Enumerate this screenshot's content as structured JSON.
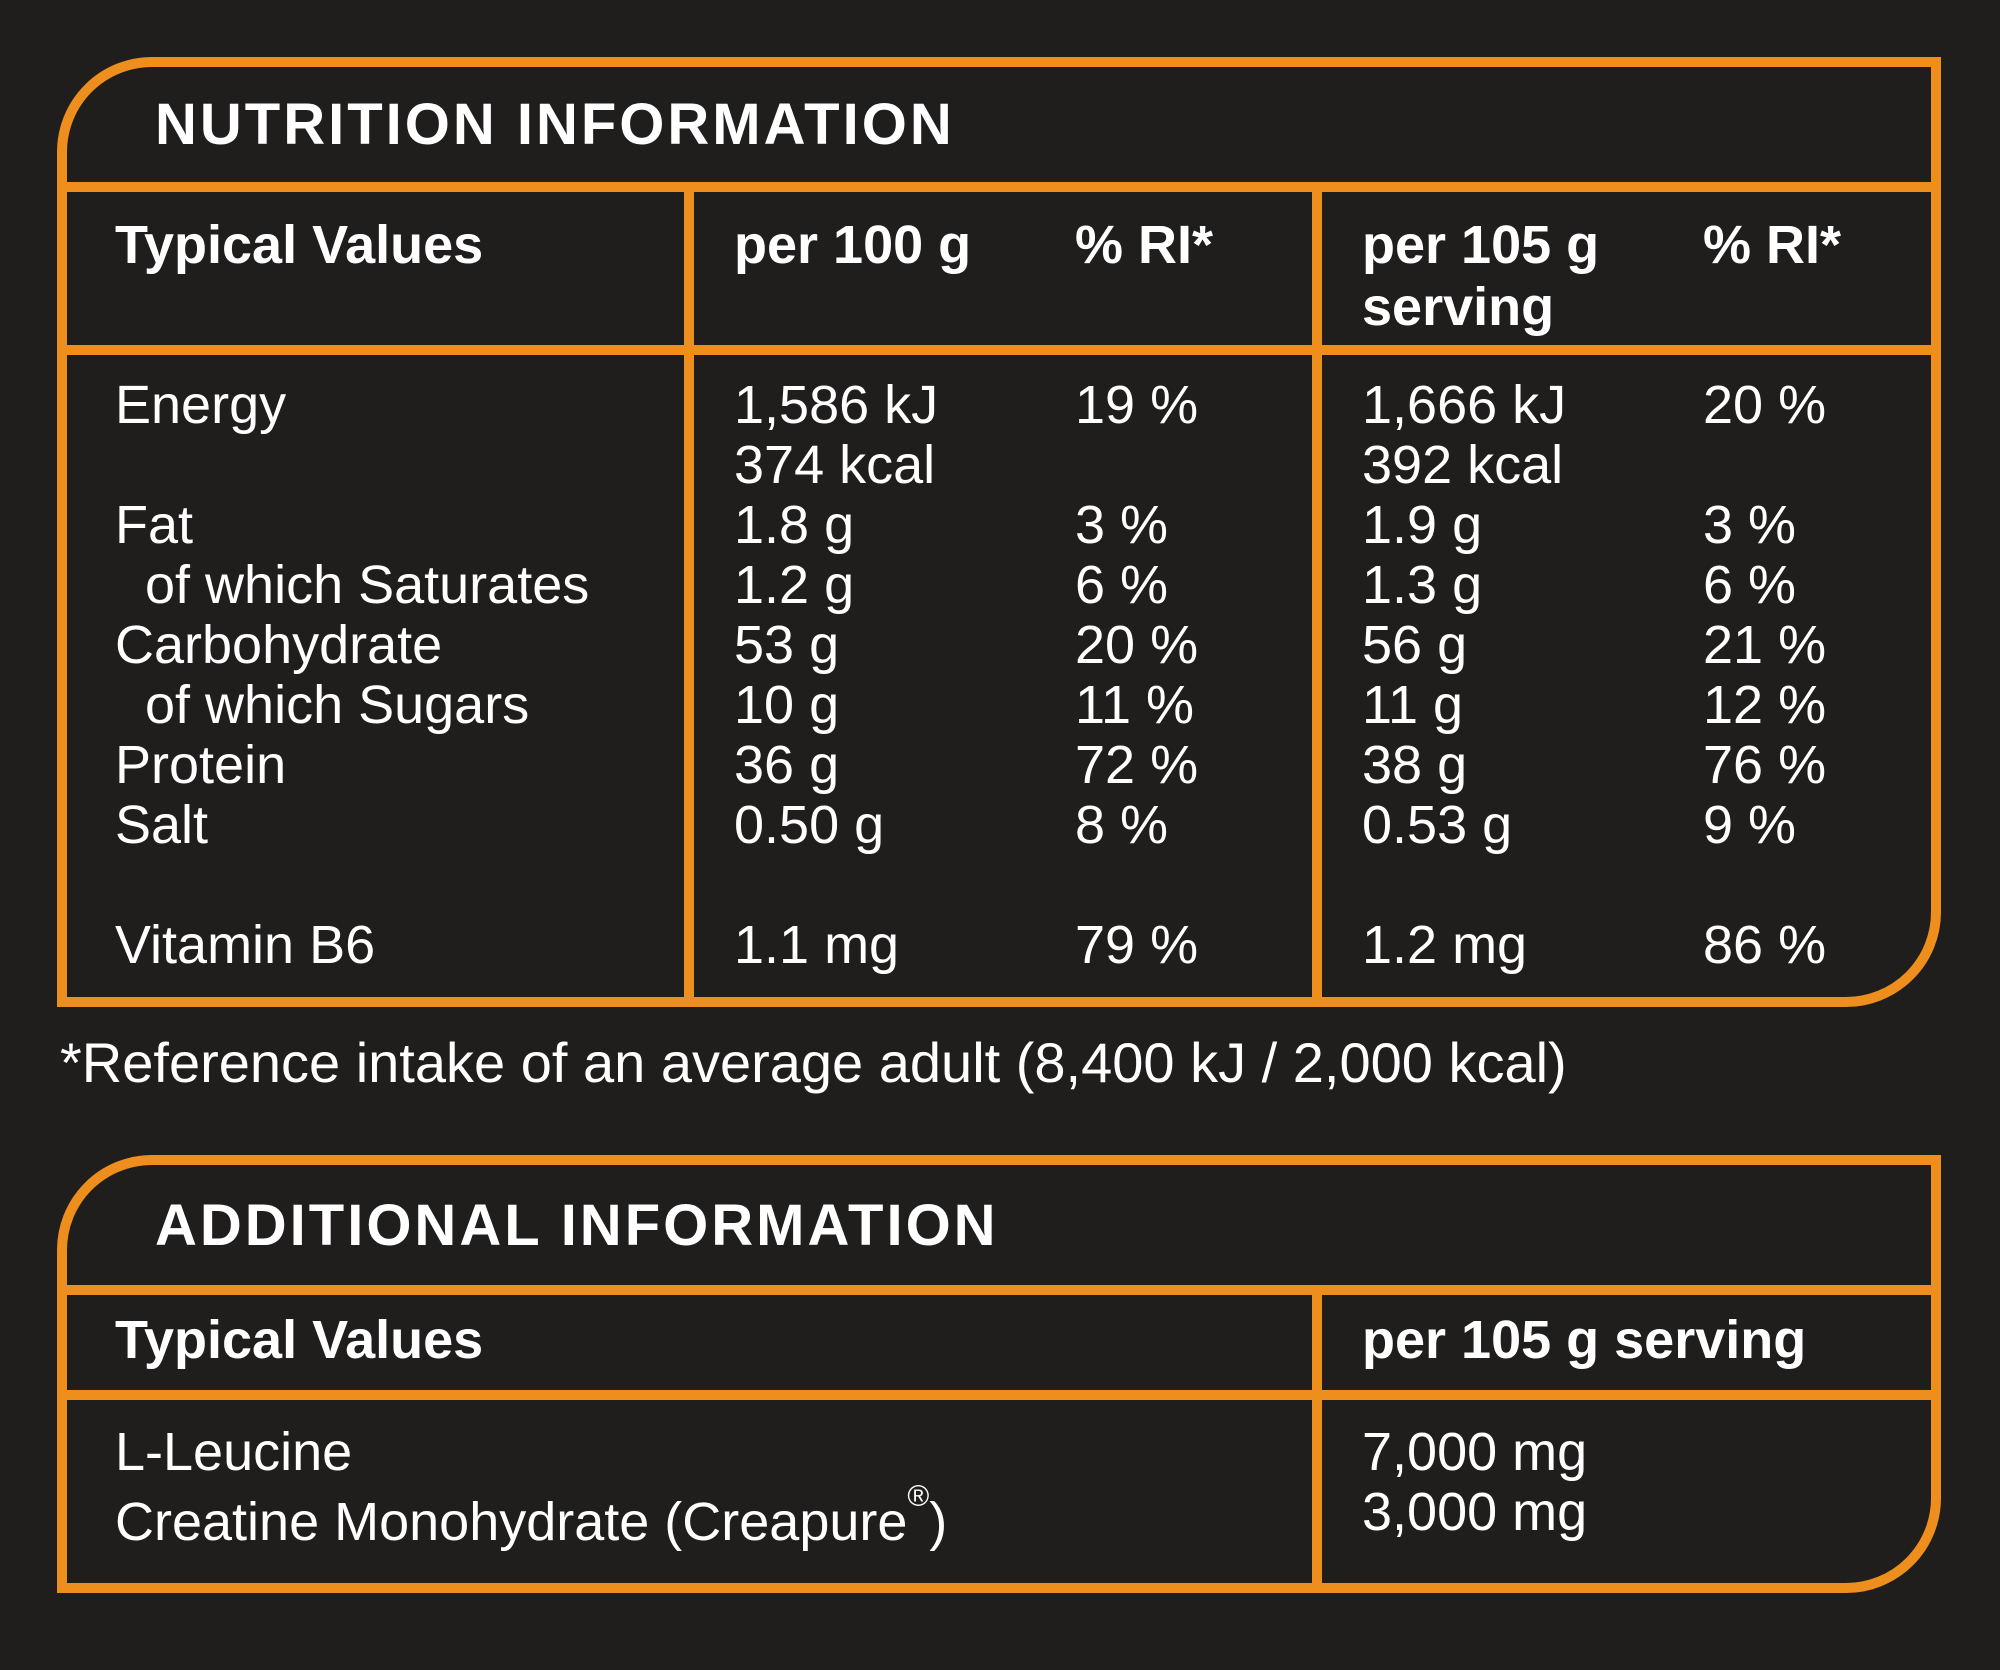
{
  "colors": {
    "background": "#201E1D",
    "accent_orange": "#EE8F1D",
    "text": "#FFFFFF"
  },
  "nutrition_table": {
    "title": "NUTRITION INFORMATION",
    "header": {
      "label": "Typical Values",
      "per100": "per 100 g",
      "ri1": "% RI*",
      "per105": "per 105 g serving",
      "ri2": "% RI*"
    },
    "rows": [
      {
        "label": "Energy",
        "indent": false,
        "spacer_before": false,
        "per100": [
          "1,586 kJ",
          "374 kcal"
        ],
        "per100_ri": "19 %",
        "per105": [
          "1,666 kJ",
          "392 kcal"
        ],
        "per105_ri": "20 %"
      },
      {
        "label": "Fat",
        "indent": false,
        "spacer_before": false,
        "per100": [
          "1.8 g"
        ],
        "per100_ri": "3 %",
        "per105": [
          "1.9 g"
        ],
        "per105_ri": "3 %"
      },
      {
        "label": "of which Saturates",
        "indent": true,
        "spacer_before": false,
        "per100": [
          "1.2 g"
        ],
        "per100_ri": "6 %",
        "per105": [
          "1.3 g"
        ],
        "per105_ri": "6 %"
      },
      {
        "label": "Carbohydrate",
        "indent": false,
        "spacer_before": false,
        "per100": [
          "53 g"
        ],
        "per100_ri": "20 %",
        "per105": [
          "56 g"
        ],
        "per105_ri": "21 %"
      },
      {
        "label": "of which Sugars",
        "indent": true,
        "spacer_before": false,
        "per100": [
          "10 g"
        ],
        "per100_ri": "11 %",
        "per105": [
          "11 g"
        ],
        "per105_ri": "12 %"
      },
      {
        "label": "Protein",
        "indent": false,
        "spacer_before": false,
        "per100": [
          "36 g"
        ],
        "per100_ri": "72 %",
        "per105": [
          "38 g"
        ],
        "per105_ri": "76 %"
      },
      {
        "label": "Salt",
        "indent": false,
        "spacer_before": false,
        "per100": [
          "0.50 g"
        ],
        "per100_ri": "8 %",
        "per105": [
          "0.53 g"
        ],
        "per105_ri": "9 %"
      },
      {
        "label": "Vitamin B6",
        "indent": false,
        "spacer_before": true,
        "per100": [
          "1.1 mg"
        ],
        "per100_ri": "79 %",
        "per105": [
          "1.2 mg"
        ],
        "per105_ri": "86 %"
      }
    ]
  },
  "footnote": "*Reference intake of an average adult (8,400 kJ / 2,000 kcal)",
  "additional_table": {
    "title": "ADDITIONAL INFORMATION",
    "header": {
      "label": "Typical Values",
      "serving": "per 105 g serving"
    },
    "rows": [
      {
        "label": "L-Leucine",
        "value": "7,000 mg"
      },
      {
        "label": "Creatine Monohydrate (Creapure®)",
        "value": "3,000 mg"
      }
    ]
  }
}
